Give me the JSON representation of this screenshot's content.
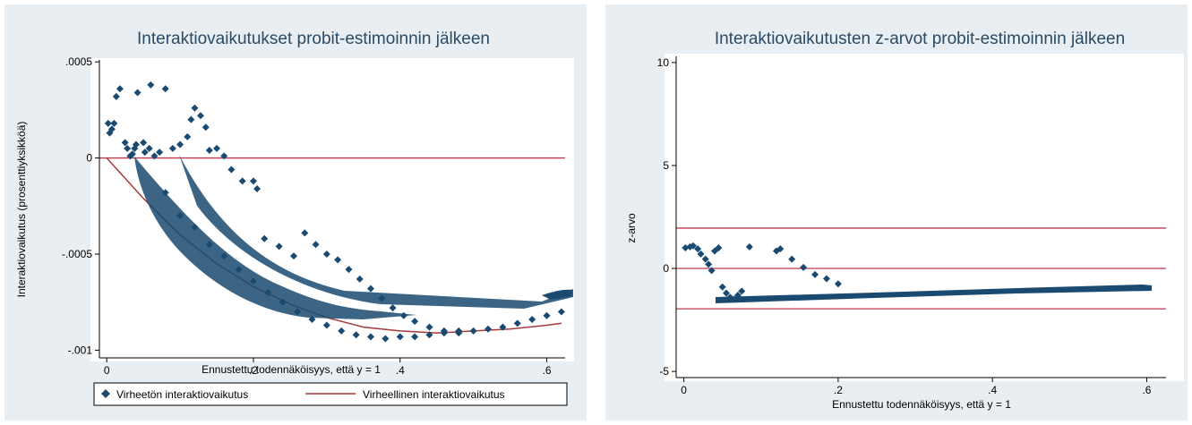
{
  "chart_data": [
    {
      "type": "scatter",
      "title": "Interaktiovaikutukset probit-estimoinnin jälkeen",
      "xlabel": "Ennustettu todennäköisyys, että y = 1",
      "ylabel": "Interaktiovaikutus (prosenttiyksikköä)",
      "xlim": [
        -0.01,
        0.625
      ],
      "ylim": [
        -0.00104,
        0.00051
      ],
      "x_ticks": [
        {
          "v": 0,
          "label": "0"
        },
        {
          "v": 0.2,
          "label": ".2"
        },
        {
          "v": 0.4,
          "label": ".4"
        },
        {
          "v": 0.6,
          "label": ".6"
        }
      ],
      "y_ticks": [
        {
          "v": 0.0005,
          "label": ".0005"
        },
        {
          "v": 0,
          "label": "0"
        },
        {
          "v": -0.0005,
          "label": "-.0005"
        },
        {
          "v": -0.001,
          "label": "-.001"
        }
      ],
      "reference_lines": [
        0
      ],
      "grid": false,
      "legend_position": "bottom",
      "series": [
        {
          "name": "Virheetön interaktiovaikutus",
          "style": "markers",
          "marker": "diamond",
          "color": "#1a4a70",
          "points": [
            [
              0.002,
              0.00018
            ],
            [
              0.004,
              0.00013
            ],
            [
              0.007,
              0.00015
            ],
            [
              0.01,
              0.00018
            ],
            [
              0.013,
              0.00032
            ],
            [
              0.018,
              0.00036
            ],
            [
              0.025,
              8e-05
            ],
            [
              0.028,
              5e-05
            ],
            [
              0.032,
              1e-05
            ],
            [
              0.035,
              2e-05
            ],
            [
              0.038,
              5e-05
            ],
            [
              0.04,
              7e-05
            ],
            [
              0.042,
              0.00034
            ],
            [
              0.05,
              8e-05
            ],
            [
              0.052,
              3e-05
            ],
            [
              0.058,
              5e-05
            ],
            [
              0.06,
              0.00038
            ],
            [
              0.065,
              1e-05
            ],
            [
              0.072,
              3e-05
            ],
            [
              0.08,
              0.00036
            ],
            [
              0.09,
              5e-05
            ],
            [
              0.1,
              7e-05
            ],
            [
              0.11,
              0.00011
            ],
            [
              0.115,
              0.0002
            ],
            [
              0.12,
              0.00026
            ],
            [
              0.128,
              0.00022
            ],
            [
              0.135,
              0.00016
            ],
            [
              0.14,
              4e-05
            ],
            [
              0.15,
              5e-05
            ],
            [
              0.16,
              1e-05
            ],
            [
              0.17,
              -6e-05
            ],
            [
              0.185,
              -0.00012
            ],
            [
              0.2,
              -0.00012
            ],
            [
              0.205,
              -0.00016
            ],
            [
              0.215,
              -0.00042
            ],
            [
              0.235,
              -0.00046
            ],
            [
              0.255,
              -0.00051
            ],
            [
              0.27,
              -0.00039
            ],
            [
              0.285,
              -0.00045
            ],
            [
              0.3,
              -0.0005
            ],
            [
              0.315,
              -0.00053
            ],
            [
              0.33,
              -0.00058
            ],
            [
              0.345,
              -0.00063
            ],
            [
              0.36,
              -0.00068
            ],
            [
              0.375,
              -0.00073
            ],
            [
              0.39,
              -0.00078
            ],
            [
              0.405,
              -0.00082
            ],
            [
              0.42,
              -0.00085
            ],
            [
              0.44,
              -0.00088
            ],
            [
              0.46,
              -0.0009
            ],
            [
              0.48,
              -0.00091
            ],
            [
              0.08,
              -0.00018
            ],
            [
              0.1,
              -0.0003
            ],
            [
              0.12,
              -0.00036
            ],
            [
              0.14,
              -0.00045
            ],
            [
              0.16,
              -0.00051
            ],
            [
              0.18,
              -0.00058
            ],
            [
              0.2,
              -0.00064
            ],
            [
              0.22,
              -0.0007
            ],
            [
              0.24,
              -0.00075
            ],
            [
              0.26,
              -0.0008
            ],
            [
              0.28,
              -0.00084
            ],
            [
              0.3,
              -0.00087
            ],
            [
              0.32,
              -0.0009
            ],
            [
              0.34,
              -0.00092
            ],
            [
              0.36,
              -0.00093
            ],
            [
              0.38,
              -0.00094
            ],
            [
              0.4,
              -0.00093
            ],
            [
              0.42,
              -0.00093
            ],
            [
              0.44,
              -0.00092
            ],
            [
              0.46,
              -0.00091
            ],
            [
              0.48,
              -0.0009
            ],
            [
              0.5,
              -0.0009
            ],
            [
              0.52,
              -0.00089
            ],
            [
              0.54,
              -0.00088
            ],
            [
              0.56,
              -0.00086
            ],
            [
              0.58,
              -0.00084
            ],
            [
              0.6,
              -0.00082
            ],
            [
              0.62,
              -0.0008
            ]
          ]
        },
        {
          "name": "Virheellinen interaktiovaikutus",
          "style": "line",
          "color": "#a53a3a",
          "points": [
            [
              0,
              0
            ],
            [
              0.05,
              -0.00021
            ],
            [
              0.1,
              -0.0004
            ],
            [
              0.15,
              -0.00055
            ],
            [
              0.2,
              -0.00067
            ],
            [
              0.25,
              -0.00076
            ],
            [
              0.3,
              -0.00083
            ],
            [
              0.35,
              -0.00088
            ],
            [
              0.4,
              -0.0009
            ],
            [
              0.45,
              -0.00091
            ],
            [
              0.5,
              -0.0009
            ],
            [
              0.55,
              -0.00089
            ],
            [
              0.6,
              -0.00087
            ],
            [
              0.62,
              -0.00086
            ]
          ]
        }
      ]
    },
    {
      "type": "scatter",
      "title": "Interaktiovaikutusten z-arvot probit-estimoinnin jälkeen",
      "xlabel": "Ennustettu todennäköisyys, että y = 1",
      "ylabel": "z-arvo",
      "xlim": [
        -0.01,
        0.625
      ],
      "ylim": [
        -5.3,
        10.3
      ],
      "x_ticks": [
        {
          "v": 0,
          "label": "0"
        },
        {
          "v": 0.2,
          "label": ".2"
        },
        {
          "v": 0.4,
          "label": ".4"
        },
        {
          "v": 0.6,
          "label": ".6"
        }
      ],
      "y_ticks": [
        {
          "v": 10,
          "label": "10"
        },
        {
          "v": 5,
          "label": "5"
        },
        {
          "v": 0,
          "label": "0"
        },
        {
          "v": -5,
          "label": "-5"
        }
      ],
      "reference_lines": [
        1.96,
        0,
        -1.96
      ],
      "grid": false,
      "series": [
        {
          "style": "markers",
          "marker": "diamond",
          "color": "#1a4a70",
          "points": [
            [
              0.002,
              1.0
            ],
            [
              0.008,
              1.05
            ],
            [
              0.012,
              1.1
            ],
            [
              0.018,
              0.95
            ],
            [
              0.022,
              0.7
            ],
            [
              0.028,
              0.45
            ],
            [
              0.032,
              0.2
            ],
            [
              0.036,
              -0.1
            ],
            [
              0.04,
              0.85
            ],
            [
              0.045,
              1.0
            ],
            [
              0.05,
              -0.9
            ],
            [
              0.055,
              -1.2
            ],
            [
              0.06,
              -1.4
            ],
            [
              0.065,
              -1.5
            ],
            [
              0.07,
              -1.3
            ],
            [
              0.075,
              -1.1
            ],
            [
              0.085,
              1.05
            ],
            [
              0.12,
              0.85
            ],
            [
              0.125,
              0.95
            ],
            [
              0.14,
              0.45
            ],
            [
              0.155,
              0.05
            ],
            [
              0.17,
              -0.3
            ],
            [
              0.185,
              -0.5
            ],
            [
              0.2,
              -0.75
            ]
          ]
        }
      ]
    }
  ],
  "legend": {
    "items": [
      {
        "label": "Virheetön interaktiovaikutus",
        "symbol": "diamond",
        "color": "#1a4a70"
      },
      {
        "label": "Virheellinen interaktiovaikutus",
        "symbol": "line",
        "color": "#a53a3a"
      }
    ]
  },
  "colors": {
    "panel_background": "#e9eef2",
    "plot_background": "#ffffff",
    "title": "#2a4a66",
    "reference_line": "#c0394d"
  }
}
